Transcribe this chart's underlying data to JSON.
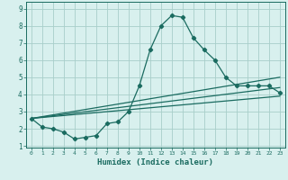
{
  "xlabel": "Humidex (Indice chaleur)",
  "x_values": [
    0,
    1,
    2,
    3,
    4,
    5,
    6,
    7,
    8,
    9,
    10,
    11,
    12,
    13,
    14,
    15,
    16,
    17,
    18,
    19,
    20,
    21,
    22,
    23
  ],
  "main_line": [
    2.6,
    2.1,
    2.0,
    1.8,
    1.4,
    1.5,
    1.6,
    2.3,
    2.4,
    3.0,
    4.5,
    6.6,
    8.0,
    8.6,
    8.5,
    7.3,
    6.6,
    6.0,
    5.0,
    4.5,
    4.5,
    4.5,
    4.5,
    4.1
  ],
  "trend1_x": [
    0,
    23
  ],
  "trend1_y": [
    2.6,
    5.0
  ],
  "trend2_x": [
    0,
    23
  ],
  "trend2_y": [
    2.6,
    4.4
  ],
  "trend3_x": [
    0,
    23
  ],
  "trend3_y": [
    2.6,
    3.9
  ],
  "bg_color": "#d8f0ee",
  "grid_color": "#a8ceca",
  "line_color": "#1a6b60",
  "marker": "D",
  "markersize": 2.2,
  "ylim": [
    0.9,
    9.4
  ],
  "xlim": [
    -0.5,
    23.5
  ],
  "yticks": [
    1,
    2,
    3,
    4,
    5,
    6,
    7,
    8,
    9
  ],
  "xticks": [
    0,
    1,
    2,
    3,
    4,
    5,
    6,
    7,
    8,
    9,
    10,
    11,
    12,
    13,
    14,
    15,
    16,
    17,
    18,
    19,
    20,
    21,
    22,
    23
  ]
}
